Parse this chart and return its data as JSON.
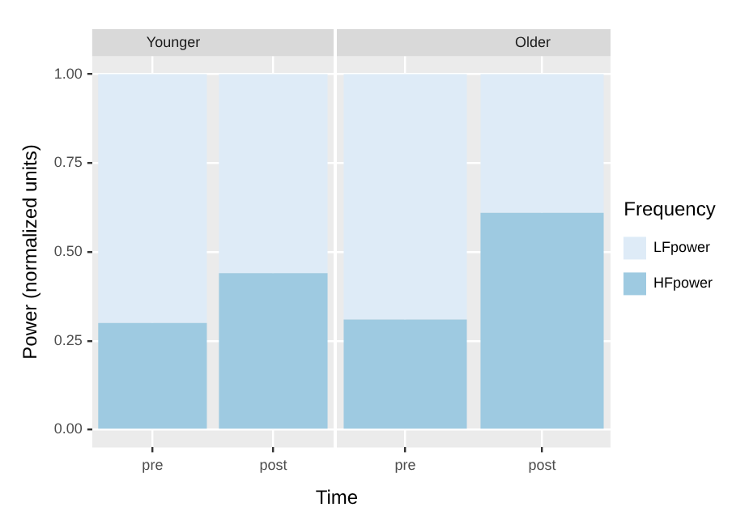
{
  "chart_data": [
    {
      "type": "bar",
      "title": "Younger",
      "ylabel": "Power (normalized units)",
      "xlabel": "Time",
      "categories": [
        "pre",
        "post"
      ],
      "stacked": true,
      "ylim": [
        -0.05,
        1.05
      ],
      "yticks": [
        {
          "value": 0,
          "label": "0.00"
        },
        {
          "value": 0.25,
          "label": "0.25"
        },
        {
          "value": 0.5,
          "label": "0.50"
        },
        {
          "value": 0.75,
          "label": "0.75"
        },
        {
          "value": 1,
          "label": "1.00"
        }
      ],
      "grid": true,
      "series": [
        {
          "color": "#9ecae1",
          "values": [
            0.3,
            0.44
          ]
        },
        {
          "color": "#deebf7",
          "values": [
            0.7,
            0.56
          ]
        }
      ]
    },
    {
      "type": "bar",
      "title": "Older",
      "categories": [
        "pre",
        "post"
      ],
      "stacked": true,
      "ylim": [
        -0.05,
        1.05
      ],
      "yticks": [
        0,
        0.25,
        0.5,
        0.75,
        1
      ],
      "grid": true,
      "tick_labels": "x",
      "legend": "right",
      "legend_title": "Frequency",
      "series": [
        {
          "name": "HFpower",
          "color": "#9ecae1",
          "values": [
            0.31,
            0.61
          ]
        },
        {
          "name": "LFpower",
          "color": "#deebf7",
          "values": [
            0.69,
            0.39
          ]
        }
      ]
    }
  ]
}
